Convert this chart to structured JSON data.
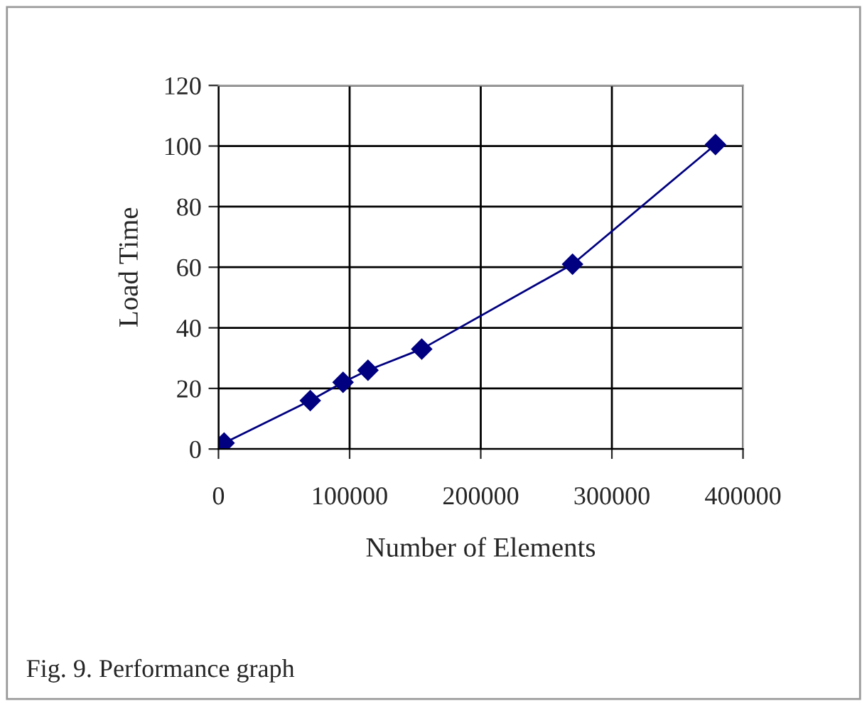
{
  "chart_data": {
    "type": "line",
    "xlabel": "Number of Elements",
    "ylabel": "Load Time",
    "annotations": [
      "Fig. 9. Performance graph"
    ],
    "series": [
      {
        "color": "#000080",
        "x": [
          4300,
          70000,
          95000,
          114000,
          155000,
          270000,
          379000
        ],
        "values": [
          2,
          16,
          22,
          26,
          33,
          61,
          100.5
        ]
      }
    ],
    "xlim": [
      0,
      400000
    ],
    "xticks": [
      0,
      100000,
      200000,
      300000,
      400000
    ],
    "ylim": [
      0,
      120
    ],
    "yticks": [
      0,
      20,
      40,
      60,
      80,
      100,
      120
    ],
    "grid": true,
    "marker": "diamond",
    "line_style": "solid"
  }
}
